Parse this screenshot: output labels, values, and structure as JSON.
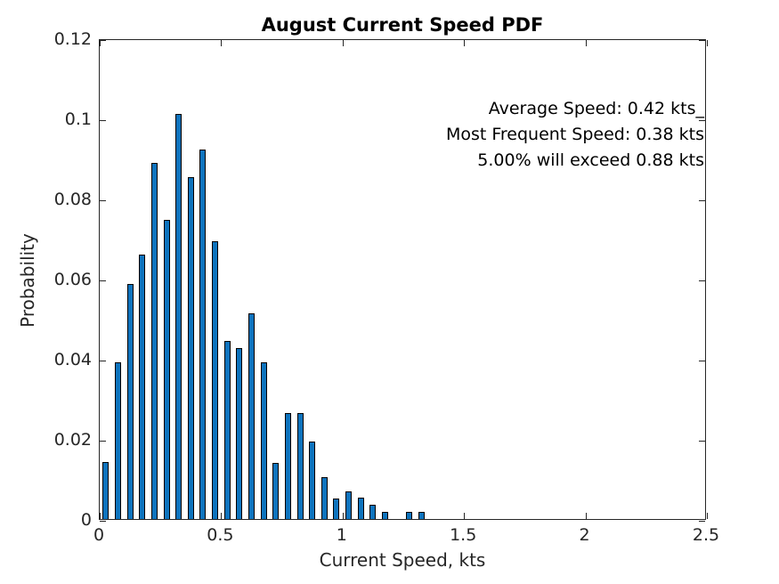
{
  "chart_data": {
    "type": "bar",
    "title": "August Current Speed PDF",
    "xlabel": "Current Speed, kts",
    "ylabel": "Probability",
    "xlim": [
      0,
      2.5
    ],
    "ylim": [
      0,
      0.12
    ],
    "x_ticks": [
      0,
      0.5,
      1,
      1.5,
      2,
      2.5
    ],
    "x_tick_labels": [
      "0",
      "0.5",
      "1",
      "1.5",
      "2",
      "2.5"
    ],
    "y_ticks": [
      0,
      0.02,
      0.04,
      0.06,
      0.08,
      0.1,
      0.12
    ],
    "y_tick_labels": [
      "0",
      "0.02",
      "0.04",
      "0.06",
      "0.08",
      "0.1",
      "0.12"
    ],
    "grid": false,
    "legend_position": "none",
    "bin_width": 0.05,
    "bar_display_width_kts": 0.025,
    "categories": [
      0.025,
      0.075,
      0.125,
      0.175,
      0.225,
      0.275,
      0.325,
      0.375,
      0.425,
      0.475,
      0.525,
      0.575,
      0.625,
      0.675,
      0.725,
      0.775,
      0.825,
      0.875,
      0.925,
      0.975,
      1.025,
      1.075,
      1.125,
      1.175,
      1.225,
      1.275,
      1.325
    ],
    "values": [
      0.0142,
      0.0391,
      0.0587,
      0.0659,
      0.089,
      0.0747,
      0.1012,
      0.0853,
      0.0923,
      0.0694,
      0.0444,
      0.0426,
      0.0514,
      0.0391,
      0.0141,
      0.0265,
      0.0265,
      0.0193,
      0.0105,
      0.0052,
      0.0069,
      0.0053,
      0.0035,
      0.0017,
      0,
      0.0017,
      0.0017
    ],
    "bar_color": "#0E74BE",
    "bar_edge_color": "#000000",
    "axis_color": "#262626",
    "title_color": "#000000",
    "annotations": [
      "Average Speed: 0.42 kts_",
      "Most Frequent Speed: 0.38 kts",
      "5.00% will exceed 0.88 kts"
    ],
    "annotation_position": "top-right",
    "stats": {
      "average_speed_kts": 0.42,
      "most_frequent_speed_kts": 0.38,
      "exceedance_percent": "5.00%",
      "exceedance_speed_kts": 0.88
    }
  }
}
